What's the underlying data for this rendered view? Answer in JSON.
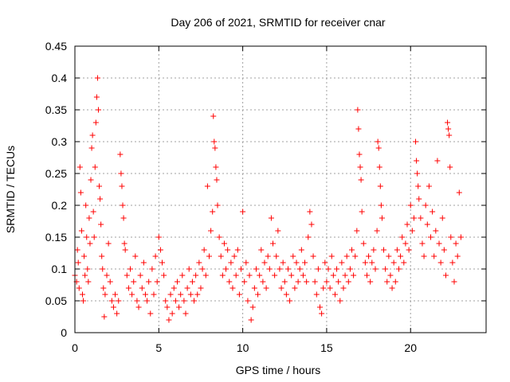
{
  "chart_data": {
    "type": "scatter",
    "title": "Day 206 of 2021, SRMTID for receiver cnar",
    "xlabel": "GPS time / hours",
    "ylabel": "SRMTID / TECUs",
    "xlim": [
      0,
      24.5
    ],
    "ylim": [
      0,
      0.45
    ],
    "xticks": [
      0,
      5,
      10,
      15,
      20
    ],
    "xtick_labels": [
      "0",
      "5",
      "10",
      "15",
      "20"
    ],
    "yticks": [
      0,
      0.05,
      0.1,
      0.15,
      0.2,
      0.25,
      0.3,
      0.35,
      0.4,
      0.45
    ],
    "ytick_labels": [
      "0",
      "0.05",
      "0.1",
      "0.15",
      "0.2",
      "0.25",
      "0.3",
      "0.35",
      "0.4",
      "0.45"
    ],
    "grid": true,
    "marker": "+",
    "color": "#ff0000",
    "series": [
      {
        "name": "SRMTID",
        "points": [
          [
            0.0,
            0.09
          ],
          [
            0.1,
            0.08
          ],
          [
            0.15,
            0.13
          ],
          [
            0.2,
            0.11
          ],
          [
            0.25,
            0.07
          ],
          [
            0.3,
            0.26
          ],
          [
            0.35,
            0.22
          ],
          [
            0.4,
            0.16
          ],
          [
            0.45,
            0.06
          ],
          [
            0.5,
            0.05
          ],
          [
            0.55,
            0.12
          ],
          [
            0.6,
            0.09
          ],
          [
            0.65,
            0.2
          ],
          [
            0.7,
            0.15
          ],
          [
            0.75,
            0.1
          ],
          [
            0.8,
            0.08
          ],
          [
            0.85,
            0.18
          ],
          [
            0.9,
            0.14
          ],
          [
            0.95,
            0.24
          ],
          [
            1.0,
            0.29
          ],
          [
            1.05,
            0.31
          ],
          [
            1.1,
            0.19
          ],
          [
            1.15,
            0.15
          ],
          [
            1.2,
            0.26
          ],
          [
            1.25,
            0.33
          ],
          [
            1.3,
            0.37
          ],
          [
            1.35,
            0.4
          ],
          [
            1.4,
            0.35
          ],
          [
            1.45,
            0.23
          ],
          [
            1.5,
            0.21
          ],
          [
            1.55,
            0.17
          ],
          [
            1.6,
            0.12
          ],
          [
            1.65,
            0.1
          ],
          [
            1.7,
            0.07
          ],
          [
            1.75,
            0.025
          ],
          [
            1.8,
            0.06
          ],
          [
            1.9,
            0.09
          ],
          [
            2.0,
            0.14
          ],
          [
            2.1,
            0.08
          ],
          [
            2.2,
            0.05
          ],
          [
            2.3,
            0.04
          ],
          [
            2.4,
            0.06
          ],
          [
            2.5,
            0.03
          ],
          [
            2.6,
            0.05
          ],
          [
            2.7,
            0.28
          ],
          [
            2.75,
            0.25
          ],
          [
            2.8,
            0.23
          ],
          [
            2.85,
            0.2
          ],
          [
            2.9,
            0.18
          ],
          [
            2.95,
            0.14
          ],
          [
            3.0,
            0.13
          ],
          [
            3.1,
            0.09
          ],
          [
            3.2,
            0.07
          ],
          [
            3.3,
            0.1
          ],
          [
            3.4,
            0.06
          ],
          [
            3.5,
            0.08
          ],
          [
            3.6,
            0.12
          ],
          [
            3.7,
            0.05
          ],
          [
            3.8,
            0.04
          ],
          [
            3.9,
            0.09
          ],
          [
            4.0,
            0.07
          ],
          [
            4.1,
            0.11
          ],
          [
            4.2,
            0.06
          ],
          [
            4.3,
            0.05
          ],
          [
            4.4,
            0.08
          ],
          [
            4.5,
            0.03
          ],
          [
            4.6,
            0.1
          ],
          [
            4.7,
            0.06
          ],
          [
            4.8,
            0.12
          ],
          [
            4.9,
            0.08
          ],
          [
            5.0,
            0.15
          ],
          [
            5.1,
            0.13
          ],
          [
            5.2,
            0.11
          ],
          [
            5.3,
            0.09
          ],
          [
            5.4,
            0.05
          ],
          [
            5.5,
            0.04
          ],
          [
            5.6,
            0.02
          ],
          [
            5.7,
            0.06
          ],
          [
            5.8,
            0.03
          ],
          [
            5.9,
            0.07
          ],
          [
            6.0,
            0.05
          ],
          [
            6.1,
            0.08
          ],
          [
            6.2,
            0.04
          ],
          [
            6.3,
            0.06
          ],
          [
            6.4,
            0.09
          ],
          [
            6.5,
            0.05
          ],
          [
            6.6,
            0.03
          ],
          [
            6.7,
            0.07
          ],
          [
            6.8,
            0.1
          ],
          [
            6.9,
            0.06
          ],
          [
            7.0,
            0.08
          ],
          [
            7.1,
            0.05
          ],
          [
            7.2,
            0.09
          ],
          [
            7.3,
            0.06
          ],
          [
            7.4,
            0.11
          ],
          [
            7.5,
            0.07
          ],
          [
            7.6,
            0.1
          ],
          [
            7.7,
            0.13
          ],
          [
            7.8,
            0.09
          ],
          [
            7.9,
            0.23
          ],
          [
            8.0,
            0.12
          ],
          [
            8.1,
            0.16
          ],
          [
            8.2,
            0.19
          ],
          [
            8.25,
            0.34
          ],
          [
            8.3,
            0.3
          ],
          [
            8.35,
            0.29
          ],
          [
            8.4,
            0.26
          ],
          [
            8.45,
            0.24
          ],
          [
            8.5,
            0.2
          ],
          [
            8.6,
            0.15
          ],
          [
            8.7,
            0.12
          ],
          [
            8.8,
            0.09
          ],
          [
            8.9,
            0.14
          ],
          [
            9.0,
            0.1
          ],
          [
            9.1,
            0.13
          ],
          [
            9.2,
            0.08
          ],
          [
            9.3,
            0.11
          ],
          [
            9.4,
            0.07
          ],
          [
            9.5,
            0.12
          ],
          [
            9.6,
            0.09
          ],
          [
            9.7,
            0.13
          ],
          [
            9.8,
            0.06
          ],
          [
            9.9,
            0.1
          ],
          [
            10.0,
            0.19
          ],
          [
            10.1,
            0.08
          ],
          [
            10.2,
            0.11
          ],
          [
            10.3,
            0.05
          ],
          [
            10.4,
            0.09
          ],
          [
            10.5,
            0.02
          ],
          [
            10.6,
            0.04
          ],
          [
            10.7,
            0.07
          ],
          [
            10.8,
            0.1
          ],
          [
            10.9,
            0.06
          ],
          [
            11.0,
            0.09
          ],
          [
            11.1,
            0.13
          ],
          [
            11.2,
            0.08
          ],
          [
            11.3,
            0.11
          ],
          [
            11.4,
            0.07
          ],
          [
            11.5,
            0.12
          ],
          [
            11.6,
            0.1
          ],
          [
            11.7,
            0.18
          ],
          [
            11.8,
            0.14
          ],
          [
            11.9,
            0.09
          ],
          [
            12.0,
            0.12
          ],
          [
            12.1,
            0.16
          ],
          [
            12.2,
            0.1
          ],
          [
            12.3,
            0.07
          ],
          [
            12.4,
            0.11
          ],
          [
            12.5,
            0.08
          ],
          [
            12.6,
            0.06
          ],
          [
            12.7,
            0.1
          ],
          [
            12.8,
            0.05
          ],
          [
            12.9,
            0.09
          ],
          [
            13.0,
            0.12
          ],
          [
            13.1,
            0.07
          ],
          [
            13.2,
            0.11
          ],
          [
            13.3,
            0.08
          ],
          [
            13.4,
            0.1
          ],
          [
            13.5,
            0.13
          ],
          [
            13.6,
            0.09
          ],
          [
            13.7,
            0.11
          ],
          [
            13.8,
            0.08
          ],
          [
            13.9,
            0.15
          ],
          [
            14.0,
            0.19
          ],
          [
            14.1,
            0.17
          ],
          [
            14.2,
            0.12
          ],
          [
            14.3,
            0.08
          ],
          [
            14.4,
            0.06
          ],
          [
            14.5,
            0.1
          ],
          [
            14.6,
            0.04
          ],
          [
            14.7,
            0.03
          ],
          [
            14.8,
            0.07
          ],
          [
            14.9,
            0.11
          ],
          [
            15.0,
            0.08
          ],
          [
            15.1,
            0.1
          ],
          [
            15.2,
            0.07
          ],
          [
            15.3,
            0.12
          ],
          [
            15.4,
            0.09
          ],
          [
            15.5,
            0.06
          ],
          [
            15.6,
            0.1
          ],
          [
            15.7,
            0.08
          ],
          [
            15.8,
            0.05
          ],
          [
            15.9,
            0.11
          ],
          [
            16.0,
            0.07
          ],
          [
            16.1,
            0.09
          ],
          [
            16.2,
            0.12
          ],
          [
            16.3,
            0.08
          ],
          [
            16.4,
            0.1
          ],
          [
            16.5,
            0.13
          ],
          [
            16.6,
            0.09
          ],
          [
            16.7,
            0.12
          ],
          [
            16.8,
            0.16
          ],
          [
            16.85,
            0.35
          ],
          [
            16.9,
            0.32
          ],
          [
            16.95,
            0.28
          ],
          [
            17.0,
            0.26
          ],
          [
            17.05,
            0.24
          ],
          [
            17.1,
            0.19
          ],
          [
            17.2,
            0.14
          ],
          [
            17.3,
            0.11
          ],
          [
            17.4,
            0.09
          ],
          [
            17.5,
            0.12
          ],
          [
            17.6,
            0.08
          ],
          [
            17.7,
            0.11
          ],
          [
            17.8,
            0.13
          ],
          [
            17.9,
            0.1
          ],
          [
            18.0,
            0.16
          ],
          [
            18.05,
            0.3
          ],
          [
            18.1,
            0.29
          ],
          [
            18.15,
            0.26
          ],
          [
            18.2,
            0.23
          ],
          [
            18.25,
            0.2
          ],
          [
            18.3,
            0.18
          ],
          [
            18.4,
            0.13
          ],
          [
            18.5,
            0.1
          ],
          [
            18.6,
            0.08
          ],
          [
            18.7,
            0.12
          ],
          [
            18.8,
            0.09
          ],
          [
            18.9,
            0.07
          ],
          [
            19.0,
            0.11
          ],
          [
            19.1,
            0.08
          ],
          [
            19.2,
            0.13
          ],
          [
            19.3,
            0.1
          ],
          [
            19.4,
            0.12
          ],
          [
            19.5,
            0.15
          ],
          [
            19.6,
            0.11
          ],
          [
            19.7,
            0.14
          ],
          [
            19.8,
            0.17
          ],
          [
            19.9,
            0.13
          ],
          [
            20.0,
            0.2
          ],
          [
            20.1,
            0.16
          ],
          [
            20.2,
            0.18
          ],
          [
            20.3,
            0.3
          ],
          [
            20.35,
            0.27
          ],
          [
            20.4,
            0.25
          ],
          [
            20.45,
            0.23
          ],
          [
            20.5,
            0.21
          ],
          [
            20.6,
            0.18
          ],
          [
            20.7,
            0.14
          ],
          [
            20.8,
            0.12
          ],
          [
            20.9,
            0.2
          ],
          [
            21.0,
            0.17
          ],
          [
            21.1,
            0.23
          ],
          [
            21.2,
            0.15
          ],
          [
            21.3,
            0.19
          ],
          [
            21.4,
            0.12
          ],
          [
            21.5,
            0.16
          ],
          [
            21.6,
            0.27
          ],
          [
            21.7,
            0.14
          ],
          [
            21.8,
            0.11
          ],
          [
            21.9,
            0.18
          ],
          [
            22.0,
            0.13
          ],
          [
            22.1,
            0.09
          ],
          [
            22.2,
            0.33
          ],
          [
            22.25,
            0.32
          ],
          [
            22.3,
            0.31
          ],
          [
            22.35,
            0.26
          ],
          [
            22.4,
            0.15
          ],
          [
            22.5,
            0.11
          ],
          [
            22.6,
            0.08
          ],
          [
            22.7,
            0.14
          ],
          [
            22.8,
            0.12
          ],
          [
            22.9,
            0.22
          ],
          [
            23.0,
            0.15
          ]
        ]
      }
    ]
  }
}
